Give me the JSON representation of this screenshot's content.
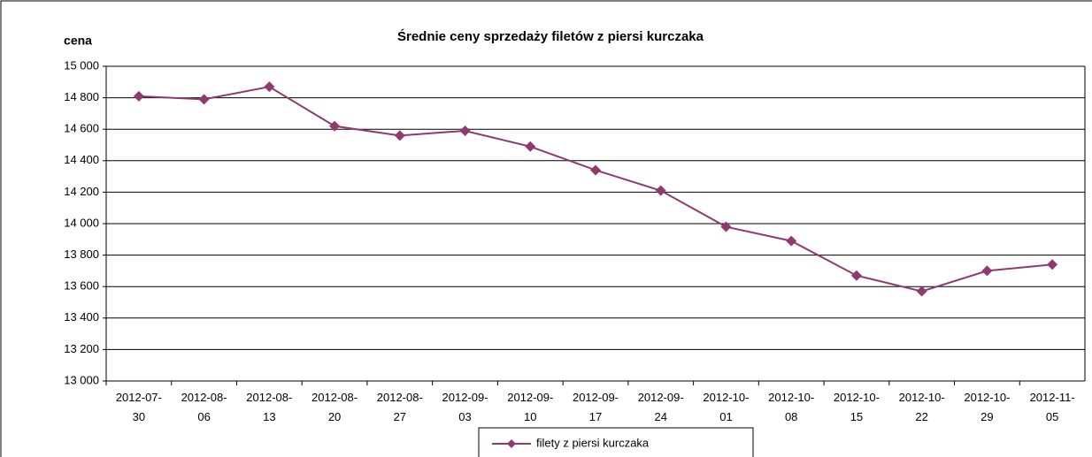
{
  "chart_data": {
    "type": "line",
    "title": "Średnie ceny sprzedaży filetów z piersi kurczaka",
    "y_label": "cena",
    "categories": [
      "2012-07-30",
      "2012-08-06",
      "2012-08-13",
      "2012-08-20",
      "2012-08-27",
      "2012-09-03",
      "2012-09-10",
      "2012-09-17",
      "2012-09-24",
      "2012-10-01",
      "2012-10-08",
      "2012-10-15",
      "2012-10-22",
      "2012-10-29",
      "2012-11-05"
    ],
    "series": [
      {
        "name": "filety z piersi kurczaka",
        "color": "#8e3a6e",
        "values": [
          14810,
          14790,
          14870,
          14620,
          14560,
          14590,
          14490,
          14340,
          14210,
          13980,
          13890,
          13670,
          13570,
          13700,
          13740
        ]
      }
    ],
    "ylim": [
      13000,
      15000
    ],
    "yticks": [
      {
        "value": 13000,
        "label": "13 000"
      },
      {
        "value": 13200,
        "label": "13 200"
      },
      {
        "value": 13400,
        "label": "13 400"
      },
      {
        "value": 13600,
        "label": "13 600"
      },
      {
        "value": 13800,
        "label": "13 800"
      },
      {
        "value": 14000,
        "label": "14 000"
      },
      {
        "value": 14200,
        "label": "14 200"
      },
      {
        "value": 14400,
        "label": "14 400"
      },
      {
        "value": 14600,
        "label": "14 600"
      },
      {
        "value": 14800,
        "label": "14 800"
      },
      {
        "value": 15000,
        "label": "15 000"
      }
    ],
    "grid": true,
    "legend": "bottom"
  }
}
